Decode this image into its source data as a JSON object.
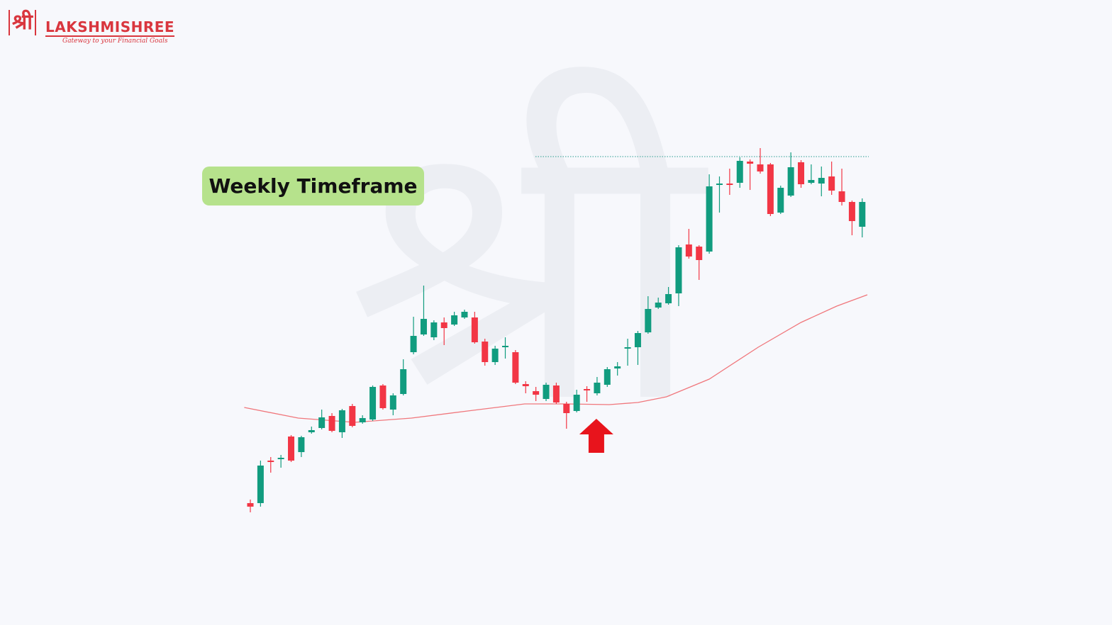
{
  "logo": {
    "symbol": "श्री",
    "name": "LAKSHMISHREE",
    "tagline": "Gateway to your Financial Goals"
  },
  "watermark": "श्री",
  "chart_data": {
    "type": "candlestick",
    "label": "Weekly Timeframe",
    "open": [
      172,
      172,
      232,
      234,
      266,
      244,
      272,
      278,
      295,
      272,
      309,
      286,
      290,
      338,
      304,
      326,
      385,
      410,
      406,
      427,
      424,
      434,
      434,
      400,
      371,
      392,
      385,
      340,
      330,
      319,
      338,
      312,
      302,
      333,
      327,
      339,
      362,
      390,
      392,
      413,
      448,
      454,
      468,
      537,
      534,
      527,
      621,
      623,
      624,
      654,
      650,
      650,
      582,
      606,
      653,
      624,
      623,
      633,
      612,
      597,
      562
    ],
    "high": [
      177,
      232,
      237,
      240,
      268,
      267,
      280,
      304,
      299,
      305,
      312,
      296,
      338,
      340,
      327,
      375,
      435,
      479,
      430,
      434,
      442,
      445,
      442,
      404,
      394,
      406,
      388,
      344,
      336,
      342,
      342,
      315,
      332,
      337,
      350,
      364,
      371,
      404,
      415,
      464,
      462,
      477,
      536,
      559,
      536,
      636,
      633,
      644,
      660,
      657,
      673,
      652,
      620,
      667,
      656,
      650,
      647,
      654,
      644,
      599,
      602
    ],
    "low": [
      159,
      167,
      215,
      222,
      230,
      237,
      270,
      276,
      272,
      264,
      279,
      284,
      288,
      304,
      296,
      324,
      382,
      408,
      402,
      395,
      422,
      432,
      397,
      366,
      367,
      376,
      340,
      327,
      316,
      316,
      312,
      277,
      300,
      315,
      324,
      336,
      352,
      366,
      367,
      411,
      446,
      452,
      450,
      517,
      487,
      524,
      582,
      607,
      617,
      614,
      637,
      577,
      580,
      604,
      617,
      622,
      605,
      607,
      592,
      550,
      547
    ],
    "close": [
      167,
      225,
      230,
      236,
      232,
      265,
      275,
      293,
      274,
      303,
      281,
      292,
      336,
      306,
      324,
      361,
      408,
      432,
      427,
      419,
      437,
      442,
      399,
      371,
      390,
      394,
      342,
      337,
      325,
      339,
      314,
      299,
      325,
      331,
      342,
      361,
      365,
      392,
      412,
      446,
      455,
      467,
      533,
      520,
      515,
      619,
      623,
      621,
      655,
      651,
      640,
      580,
      617,
      646,
      622,
      628,
      631,
      613,
      597,
      570,
      597
    ],
    "up_color": "#119c7f",
    "down_color": "#f23645",
    "moving_average": {
      "color": "#f0777c",
      "x": [
        -0.6,
        4.7,
        10.2,
        15.8,
        21.3,
        26.9,
        31.0,
        35.2,
        38.0,
        40.8,
        45.0,
        49.8,
        54.0,
        57.5,
        60.5
      ],
      "values": [
        307,
        292,
        286,
        292,
        302,
        312,
        312,
        311,
        314,
        322,
        347,
        392,
        427,
        450,
        466
      ]
    },
    "resistance": {
      "value": 661,
      "color": "#2a9d8f"
    },
    "signal_index": 34,
    "signal_color": "#e8141c",
    "ylim": [
      0,
      882
    ]
  }
}
